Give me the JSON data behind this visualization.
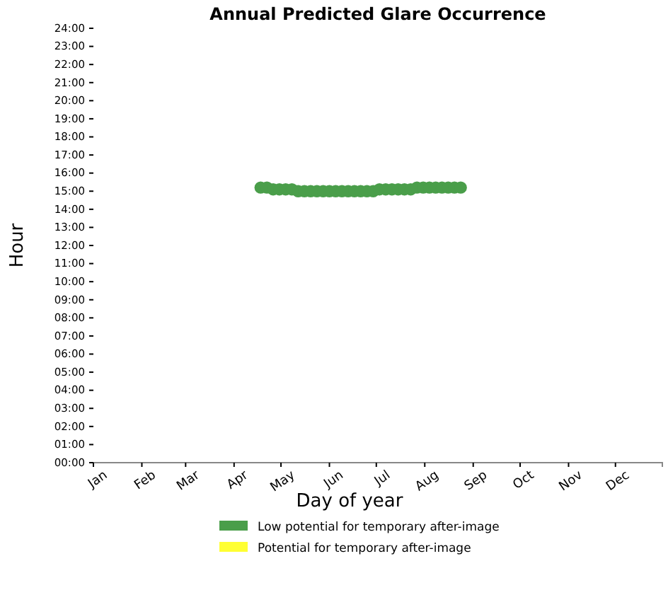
{
  "chart_data": {
    "type": "scatter",
    "title": "Annual Predicted Glare Occurrence",
    "xlabel": "Day of year",
    "ylabel": "Hour",
    "xlim": [
      "--01-01",
      "--12-31"
    ],
    "xticks": [
      {
        "value": "--01-01",
        "label": "Jan"
      },
      {
        "value": "--02-01",
        "label": "Feb"
      },
      {
        "value": "--03-01",
        "label": "Mar"
      },
      {
        "value": "--04-01",
        "label": "Apr"
      },
      {
        "value": "--05-01",
        "label": "May"
      },
      {
        "value": "--06-01",
        "label": "Jun"
      },
      {
        "value": "--07-01",
        "label": "Jul"
      },
      {
        "value": "--08-01",
        "label": "Aug"
      },
      {
        "value": "--09-01",
        "label": "Sep"
      },
      {
        "value": "--10-01",
        "label": "Oct"
      },
      {
        "value": "--11-01",
        "label": "Nov"
      },
      {
        "value": "--12-01",
        "label": "Dec"
      }
    ],
    "ylim": [
      0,
      24
    ],
    "yticks": [
      {
        "value": 0,
        "label": "00:00"
      },
      {
        "value": 1,
        "label": "01:00"
      },
      {
        "value": 2,
        "label": "02:00"
      },
      {
        "value": 3,
        "label": "03:00"
      },
      {
        "value": 4,
        "label": "04:00"
      },
      {
        "value": 5,
        "label": "05:00"
      },
      {
        "value": 6,
        "label": "06:00"
      },
      {
        "value": 7,
        "label": "07:00"
      },
      {
        "value": 8,
        "label": "08:00"
      },
      {
        "value": 9,
        "label": "09:00"
      },
      {
        "value": 10,
        "label": "10:00"
      },
      {
        "value": 11,
        "label": "11:00"
      },
      {
        "value": 12,
        "label": "12:00"
      },
      {
        "value": 13,
        "label": "13:00"
      },
      {
        "value": 14,
        "label": "14:00"
      },
      {
        "value": 15,
        "label": "15:00"
      },
      {
        "value": 16,
        "label": "16:00"
      },
      {
        "value": 17,
        "label": "17:00"
      },
      {
        "value": 18,
        "label": "18:00"
      },
      {
        "value": 19,
        "label": "19:00"
      },
      {
        "value": 20,
        "label": "20:00"
      },
      {
        "value": 21,
        "label": "21:00"
      },
      {
        "value": 22,
        "label": "22:00"
      },
      {
        "value": 23,
        "label": "23:00"
      },
      {
        "value": 24,
        "label": "24:00"
      }
    ],
    "marker": "circle",
    "legend": "bottom",
    "grid": false,
    "series": [
      {
        "name": "Low potential for temporary after-image",
        "color": "#4a9e4a",
        "x": [
          "--04-18",
          "--04-22",
          "--04-26",
          "--04-30",
          "--05-04",
          "--05-08",
          "--05-12",
          "--05-16",
          "--05-20",
          "--05-24",
          "--05-28",
          "--06-01",
          "--06-05",
          "--06-09",
          "--06-13",
          "--06-17",
          "--06-21",
          "--06-25",
          "--06-29",
          "--07-03",
          "--07-07",
          "--07-11",
          "--07-15",
          "--07-19",
          "--07-23",
          "--07-27",
          "--07-31",
          "--08-04",
          "--08-08",
          "--08-12",
          "--08-16",
          "--08-20",
          "--08-24"
        ],
        "values": [
          15.2,
          15.2,
          15.1,
          15.1,
          15.1,
          15.1,
          15.0,
          15.0,
          15.0,
          15.0,
          15.0,
          15.0,
          15.0,
          15.0,
          15.0,
          15.0,
          15.0,
          15.0,
          15.0,
          15.1,
          15.1,
          15.1,
          15.1,
          15.1,
          15.1,
          15.2,
          15.2,
          15.2,
          15.2,
          15.2,
          15.2,
          15.2,
          15.2
        ]
      },
      {
        "name": "Potential for temporary after-image",
        "color": "#ffff33"
      }
    ]
  }
}
